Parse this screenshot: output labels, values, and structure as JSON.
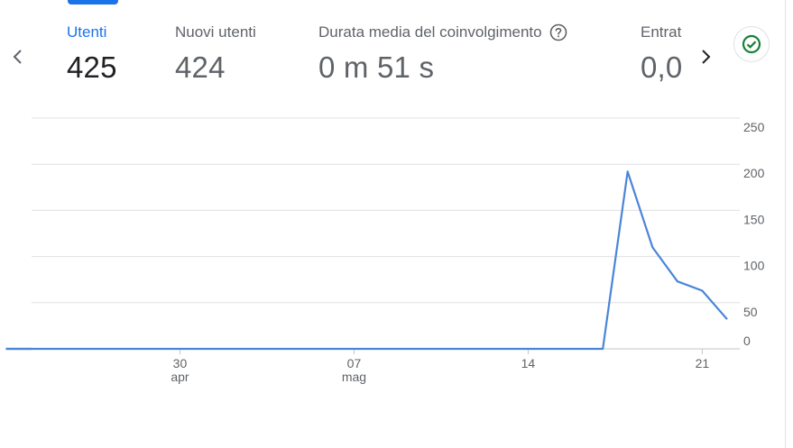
{
  "metrics": [
    {
      "label": "Utenti",
      "value": "425",
      "active": true
    },
    {
      "label": "Nuovi utenti",
      "value": "424",
      "active": false
    },
    {
      "label": "Durata media del coinvolgimento",
      "value": "0 m 51 s",
      "active": false,
      "has_help": true
    },
    {
      "label": "Entrat",
      "value": "0,0",
      "active": false
    }
  ],
  "icons": {
    "nav_prev": "chevron-left-icon",
    "nav_next": "chevron-right-icon",
    "help": "help-circle-icon",
    "status": "check-circle-icon"
  },
  "colors": {
    "accent": "#1a73e8",
    "line": "#4a85d8",
    "status_green": "#188038",
    "grid": "#e0e0e0",
    "text_muted": "#5f6368"
  },
  "chart_data": {
    "type": "line",
    "title": "",
    "xlabel": "",
    "ylabel": "",
    "x_tick_labels": [
      {
        "day": "30",
        "month": "apr"
      },
      {
        "day": "07",
        "month": "mag"
      },
      {
        "day": "14",
        "month": ""
      },
      {
        "day": "21",
        "month": ""
      }
    ],
    "y_tick_labels": [
      "250",
      "200",
      "150",
      "100",
      "50",
      "0"
    ],
    "ylim": [
      0,
      250
    ],
    "grid": true,
    "series": [
      {
        "x": [
          "23 apr",
          "24 apr",
          "25 apr",
          "26 apr",
          "27 apr",
          "28 apr",
          "29 apr",
          "30 apr",
          "1 mag",
          "2 mag",
          "3 mag",
          "4 mag",
          "5 mag",
          "6 mag",
          "7 mag",
          "8 mag",
          "9 mag",
          "10 mag",
          "11 mag",
          "12 mag",
          "13 mag",
          "14 mag",
          "15 mag",
          "16 mag",
          "17 mag",
          "18 mag",
          "19 mag",
          "20 mag",
          "21 mag",
          "22 mag"
        ],
        "values": [
          0,
          0,
          0,
          0,
          0,
          0,
          0,
          0,
          0,
          0,
          0,
          0,
          0,
          0,
          0,
          0,
          0,
          0,
          0,
          0,
          0,
          0,
          0,
          0,
          0,
          192,
          110,
          73,
          63,
          32
        ]
      }
    ]
  }
}
